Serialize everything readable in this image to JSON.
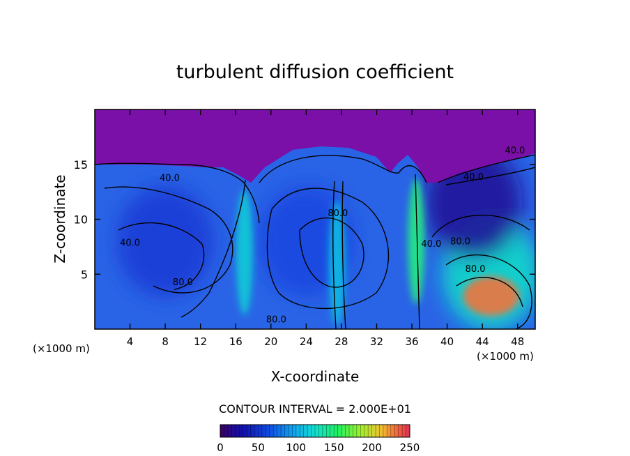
{
  "chart_data": {
    "type": "heatmap",
    "title": "turbulent diffusion coefficient",
    "xlabel": "X-coordinate",
    "ylabel": "Z-coordinate",
    "x_unit_left": "(×1000 m)",
    "x_unit_right": "(×1000 m)",
    "xlim": [
      0,
      50
    ],
    "ylim": [
      0,
      20
    ],
    "x_ticks": [
      "4",
      "8",
      "12",
      "16",
      "20",
      "24",
      "28",
      "32",
      "36",
      "40",
      "44",
      "48"
    ],
    "x_tick_values": [
      4,
      8,
      12,
      16,
      20,
      24,
      28,
      32,
      36,
      40,
      44,
      48
    ],
    "y_ticks": [
      "5",
      "10",
      "15"
    ],
    "y_tick_values": [
      5,
      10,
      15
    ],
    "contour_interval_text": "CONTOUR INTERVAL = 2.000E+01",
    "contour_labels": [
      {
        "text": "40.0",
        "x": 8.5,
        "z": 13.5
      },
      {
        "text": "40.0",
        "x": 4.0,
        "z": 7.6
      },
      {
        "text": "80.0",
        "x": 10.0,
        "z": 4.0
      },
      {
        "text": "80.0",
        "x": 27.6,
        "z": 10.3
      },
      {
        "text": "80.0",
        "x": 20.6,
        "z": 0.6
      },
      {
        "text": "40.0",
        "x": 38.2,
        "z": 7.5
      },
      {
        "text": "80.0",
        "x": 41.5,
        "z": 7.7
      },
      {
        "text": "80.0",
        "x": 43.2,
        "z": 5.2
      },
      {
        "text": "40.0",
        "x": 43.0,
        "z": 13.6
      },
      {
        "text": "40.0",
        "x": 47.7,
        "z": 16.0
      }
    ],
    "colorbar": {
      "range": [
        0,
        250
      ],
      "ticks": [
        "0",
        "50",
        "100",
        "150",
        "200",
        "250"
      ],
      "tick_values": [
        0,
        50,
        100,
        150,
        200,
        250
      ]
    },
    "field_regions": [
      {
        "name": "upper-stable-layer",
        "x_range": [
          0,
          50
        ],
        "z_range": [
          15,
          20
        ],
        "value": 0
      },
      {
        "name": "left-eddy",
        "x_center": 8,
        "z_center": 8,
        "value": 50
      },
      {
        "name": "central-eddy",
        "x_center": 24,
        "z_center": 8,
        "value": 55
      },
      {
        "name": "right-eddy",
        "x_center": 45,
        "z_center": 5,
        "value": 120
      },
      {
        "name": "upper-right-band",
        "x_center": 43,
        "z_center": 11.5,
        "value": 20
      },
      {
        "name": "plume-16",
        "x_center": 17,
        "z_center": 7,
        "value": 110
      },
      {
        "name": "plume-28",
        "x_center": 27.5,
        "z_center": 6,
        "value": 100
      },
      {
        "name": "plume-37",
        "x_center": 36.5,
        "z_center": 8,
        "value": 140
      },
      {
        "name": "core-45",
        "x_center": 45,
        "z_center": 3,
        "value": 230
      }
    ]
  }
}
